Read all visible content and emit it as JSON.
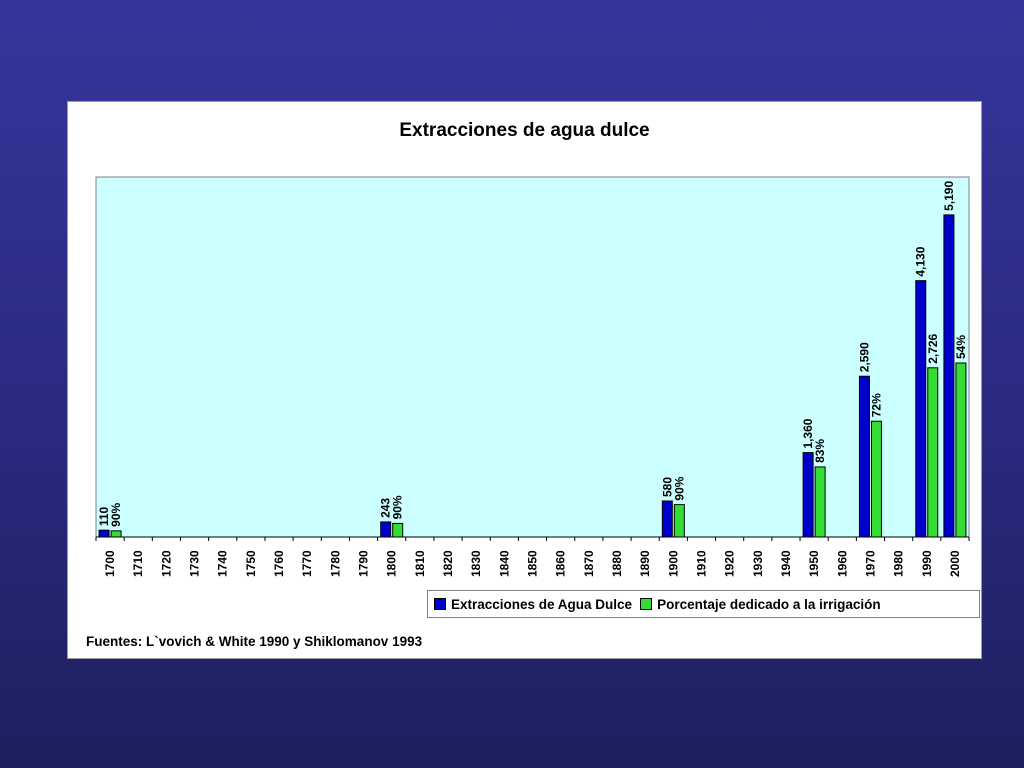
{
  "chart_data": {
    "type": "bar",
    "title": "Extracciones de agua dulce",
    "categories": [
      "1700",
      "1710",
      "1720",
      "1730",
      "1740",
      "1750",
      "1760",
      "1770",
      "1780",
      "1790",
      "1800",
      "1810",
      "1820",
      "1830",
      "1840",
      "1850",
      "1860",
      "1870",
      "1880",
      "1890",
      "1900",
      "1910",
      "1920",
      "1930",
      "1940",
      "1950",
      "1960",
      "1970",
      "1980",
      "1990",
      "2000"
    ],
    "series": [
      {
        "name": "Extracciones de Agua Dulce",
        "color": "#0000cc",
        "values": [
          110,
          null,
          null,
          null,
          null,
          null,
          null,
          null,
          null,
          null,
          243,
          null,
          null,
          null,
          null,
          null,
          null,
          null,
          null,
          null,
          580,
          null,
          null,
          null,
          null,
          1360,
          null,
          2590,
          null,
          4130,
          5190
        ],
        "labels": [
          "110",
          "",
          "",
          "",
          "",
          "",
          "",
          "",
          "",
          "",
          "243",
          "",
          "",
          "",
          "",
          "",
          "",
          "",
          "",
          "",
          "580",
          "",
          "",
          "",
          "",
          "1,360",
          "",
          "2,590",
          "",
          "4,130",
          "5,190"
        ]
      },
      {
        "name": "Porcentaje dedicado a la irrigación",
        "color": "#33dd33",
        "values": [
          99,
          null,
          null,
          null,
          null,
          null,
          null,
          null,
          null,
          null,
          219,
          null,
          null,
          null,
          null,
          null,
          null,
          null,
          null,
          null,
          522,
          null,
          null,
          null,
          null,
          1129,
          null,
          1865,
          null,
          2726,
          2803
        ],
        "labels": [
          "90%",
          "",
          "",
          "",
          "",
          "",
          "",
          "",
          "",
          "",
          "90%",
          "",
          "",
          "",
          "",
          "",
          "",
          "",
          "",
          "",
          "90%",
          "",
          "",
          "",
          "",
          "83%",
          "",
          "72%",
          "",
          "2,726",
          "54%"
        ]
      }
    ],
    "ylim": [
      0,
      5800
    ],
    "plot_background": "#ccffff",
    "legend_position": "bottom-right"
  },
  "source_note": "Fuentes: L`vovich & White 1990 y Shiklomanov 1993"
}
